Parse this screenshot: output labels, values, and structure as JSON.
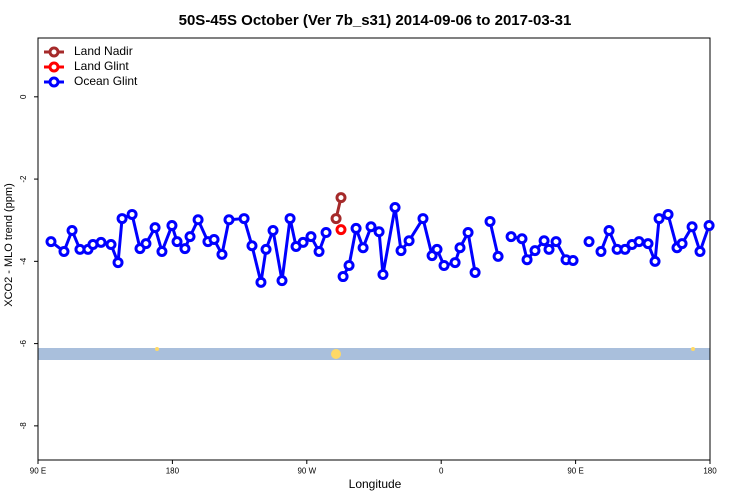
{
  "chart_data": {
    "type": "line",
    "title": "50S-45S October (Ver 7b_s31)   2014-09-06 to 2017-03-31",
    "x_label": "Longitude",
    "y_label": "XCO2 - MLO trend (ppm)",
    "xlim": [
      90,
      540
    ],
    "xticks": [
      {
        "value": 90,
        "label": "90 E"
      },
      {
        "value": 180,
        "label": "180"
      },
      {
        "value": 270,
        "label": "90 W"
      },
      {
        "value": 360,
        "label": "0"
      },
      {
        "value": 450,
        "label": "90 E"
      },
      {
        "value": 540,
        "label": "180"
      }
    ],
    "ylim": [
      -8.83,
      1.43
    ],
    "yticks": [
      0,
      -2,
      -4,
      -6,
      -8
    ],
    "legend": "top-left",
    "series": [
      {
        "name": "Land Nadir",
        "color": "#a52a2a",
        "x": [
          289.6,
          292.9
        ],
        "values": [
          -2.96,
          -2.45
        ]
      },
      {
        "name": "Land Glint",
        "color": "#ff0000",
        "x": [
          292.9
        ],
        "values": [
          -3.23
        ]
      },
      {
        "name": "Ocean Glint",
        "color": "#0000ff",
        "x": [
          98.7,
          107.4,
          112.8,
          118.1,
          123.5,
          126.8,
          132.2,
          138.9,
          143.6,
          146.3,
          153.0,
          158.3,
          162.3,
          168.4,
          173.0,
          179.7,
          183.1,
          188.4,
          191.8,
          197.2,
          203.8,
          207.9,
          213.2,
          217.9,
          228.0,
          233.3,
          239.3,
          242.7,
          247.4,
          253.4,
          258.8,
          262.8,
          267.5,
          272.8,
          278.2,
          282.9,
          null,
          294.3,
          298.3,
          303.0,
          307.7,
          313.0,
          318.4,
          321.0,
          329.1,
          333.1,
          338.5,
          347.8,
          353.9,
          357.2,
          361.9,
          369.3,
          372.6,
          378.0,
          382.7,
          null,
          392.7,
          398.1,
          null,
          406.8,
          414.1,
          417.5,
          422.8,
          428.9,
          432.2,
          436.9,
          443.6,
          448.3,
          null,
          459.0,
          null,
          467.0,
          472.4,
          477.8,
          483.1,
          487.8,
          492.5,
          498.5,
          503.2,
          505.9,
          511.9,
          517.9,
          521.3,
          528.0,
          533.3,
          539.4
        ],
        "values": [
          -3.52,
          -3.76,
          -3.25,
          -3.71,
          -3.71,
          -3.59,
          -3.54,
          -3.59,
          -4.03,
          -2.96,
          -2.86,
          -3.69,
          -3.57,
          -3.18,
          -3.76,
          -3.13,
          -3.52,
          -3.69,
          -3.4,
          -2.99,
          -3.52,
          -3.47,
          -3.83,
          -2.99,
          -2.96,
          -3.62,
          -4.51,
          -3.71,
          -3.25,
          -4.47,
          -2.96,
          -3.64,
          -3.54,
          -3.4,
          -3.76,
          -3.3,
          null,
          -4.37,
          -4.1,
          -3.2,
          -3.67,
          -3.16,
          -3.28,
          -4.32,
          -2.69,
          -3.74,
          -3.5,
          -2.96,
          -3.86,
          -3.71,
          -4.1,
          -4.03,
          -3.67,
          -3.3,
          -4.27,
          null,
          -3.03,
          -3.88,
          null,
          -3.4,
          -3.45,
          -3.96,
          -3.74,
          -3.5,
          -3.71,
          -3.52,
          -3.96,
          -3.98,
          null,
          -3.52,
          null,
          -3.76,
          -3.25,
          -3.71,
          -3.71,
          -3.59,
          -3.52,
          -3.57,
          -4.0,
          -2.96,
          -2.86,
          -3.67,
          -3.57,
          -3.16,
          -3.76,
          -3.13
        ]
      }
    ]
  }
}
